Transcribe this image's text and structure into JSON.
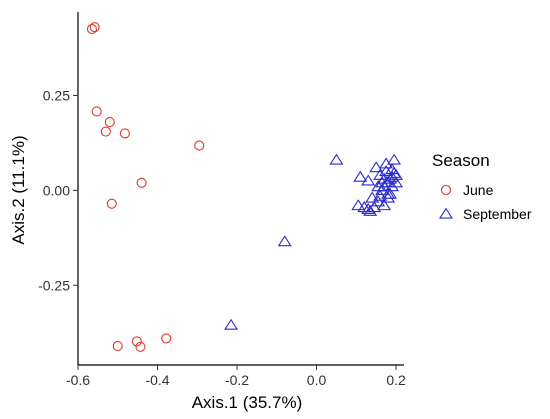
{
  "chart_data": {
    "type": "scatter",
    "title": "",
    "xlabel": "Axis.1  (35.7%)",
    "ylabel": "Axis.2  (11.1%)",
    "xlim": [
      -0.6,
      0.22
    ],
    "ylim": [
      -0.46,
      0.47
    ],
    "x_ticks": [
      -0.6,
      -0.4,
      -0.2,
      0.0,
      0.2
    ],
    "x_tick_labels": [
      "-0.6",
      "-0.4",
      "-0.2",
      "0.0",
      "0.2"
    ],
    "y_ticks": [
      -0.25,
      0.0,
      0.25
    ],
    "y_tick_labels": [
      "-0.25",
      "0.00",
      "0.25"
    ],
    "grid": false,
    "legend": {
      "title": "Season",
      "position": "right"
    },
    "series": [
      {
        "name": "June",
        "marker": "circle",
        "color": "#e0362b",
        "points": [
          [
            -0.565,
            0.425
          ],
          [
            -0.558,
            0.43
          ],
          [
            -0.553,
            0.208
          ],
          [
            -0.53,
            0.155
          ],
          [
            -0.52,
            0.18
          ],
          [
            -0.482,
            0.15
          ],
          [
            -0.44,
            0.02
          ],
          [
            -0.515,
            -0.035
          ],
          [
            -0.295,
            0.118
          ],
          [
            -0.5,
            -0.41
          ],
          [
            -0.452,
            -0.398
          ],
          [
            -0.443,
            -0.412
          ],
          [
            -0.378,
            -0.39
          ]
        ]
      },
      {
        "name": "September",
        "marker": "triangle",
        "color": "#2a2acf",
        "points": [
          [
            0.05,
            0.08
          ],
          [
            0.11,
            0.035
          ],
          [
            0.13,
            0.025
          ],
          [
            0.15,
            0.06
          ],
          [
            0.16,
            0.04
          ],
          [
            0.17,
            0.01
          ],
          [
            0.18,
            -0.01
          ],
          [
            0.175,
            0.05
          ],
          [
            0.185,
            0.03
          ],
          [
            0.19,
            0.055
          ],
          [
            0.195,
            0.08
          ],
          [
            0.2,
            0.04
          ],
          [
            0.14,
            -0.02
          ],
          [
            0.155,
            -0.03
          ],
          [
            0.165,
            0.0
          ],
          [
            0.17,
            -0.04
          ],
          [
            0.18,
            -0.02
          ],
          [
            0.19,
            0.01
          ],
          [
            0.145,
            -0.045
          ],
          [
            0.13,
            -0.05
          ],
          [
            0.135,
            -0.055
          ],
          [
            0.18,
            0.02
          ],
          [
            0.175,
            0.07
          ],
          [
            0.165,
            0.02
          ],
          [
            0.185,
            -0.01
          ],
          [
            0.19,
            0.035
          ],
          [
            0.2,
            0.02
          ],
          [
            0.155,
            0.01
          ],
          [
            0.16,
            -0.015
          ],
          [
            0.105,
            -0.04
          ],
          [
            0.12,
            -0.045
          ],
          [
            0.195,
            0.045
          ],
          [
            0.17,
            0.03
          ],
          [
            -0.08,
            -0.135
          ],
          [
            -0.215,
            -0.355
          ]
        ]
      }
    ]
  }
}
